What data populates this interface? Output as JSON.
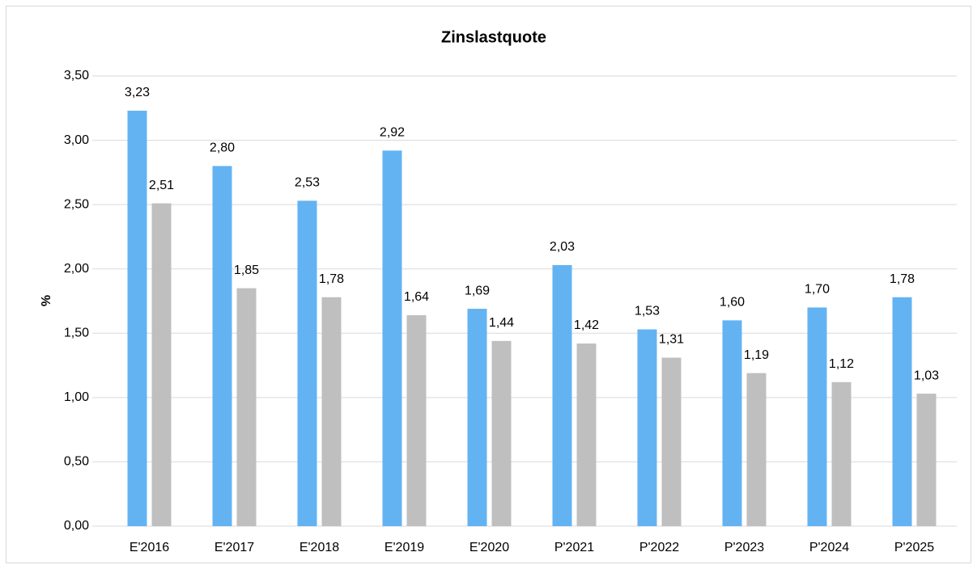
{
  "chart_data": {
    "type": "bar",
    "title": "Zinslastquote",
    "ylabel": "%",
    "categories": [
      "E'2016",
      "E'2017",
      "E'2018",
      "E'2019",
      "E'2020",
      "P'2021",
      "P'2022",
      "P'2023",
      "P'2024",
      "P'2025"
    ],
    "series": [
      {
        "color": "#63b3f3",
        "values": [
          3.23,
          2.8,
          2.53,
          2.92,
          1.69,
          2.03,
          1.53,
          1.6,
          1.7,
          1.78
        ],
        "value_labels": [
          "3,23",
          "2,80",
          "2,53",
          "2,92",
          "1,69",
          "2,03",
          "1,53",
          "1,60",
          "1,70",
          "1,78"
        ]
      },
      {
        "color": "#bfbfbf",
        "values": [
          2.51,
          1.85,
          1.78,
          1.64,
          1.44,
          1.42,
          1.31,
          1.19,
          1.12,
          1.03
        ],
        "value_labels": [
          "2,51",
          "1,85",
          "1,78",
          "1,64",
          "1,44",
          "1,42",
          "1,31",
          "1,19",
          "1,12",
          "1,03"
        ]
      }
    ],
    "ylim": [
      0,
      3.5
    ],
    "yticks": [
      {
        "value": 0,
        "label": "0,00"
      },
      {
        "value": 0.5,
        "label": "0,50"
      },
      {
        "value": 1,
        "label": "1,00"
      },
      {
        "value": 1.5,
        "label": "1,50"
      },
      {
        "value": 2,
        "label": "2,00"
      },
      {
        "value": 2.5,
        "label": "2,50"
      },
      {
        "value": 3,
        "label": "3,00"
      },
      {
        "value": 3.5,
        "label": "3,50"
      }
    ],
    "grid": true
  }
}
